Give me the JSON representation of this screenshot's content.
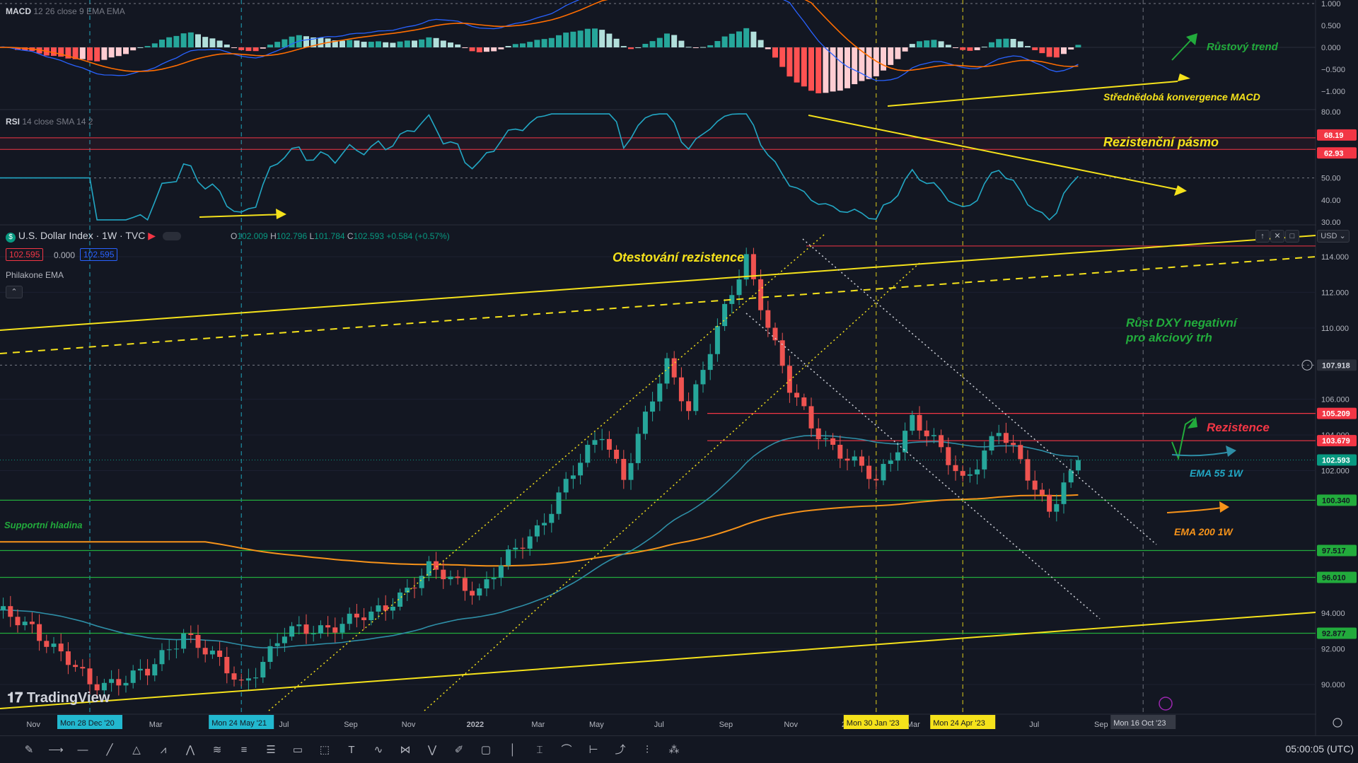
{
  "header": {
    "macd_label": "MACD",
    "macd_params": "12 26 close 9 EMA EMA",
    "rsi_label": "RSI",
    "rsi_params": "14 close SMA 14 2",
    "symbol": "U.S. Dollar Index · 1W · TVC",
    "open_label": "O",
    "open": "102.009",
    "high_label": "H",
    "high": "102.796",
    "low_label": "L",
    "low": "101.784",
    "close_label": "C",
    "close": "102.593",
    "change": "+0.584 (+0.57%)",
    "bid": "102.595",
    "spread": "0.000",
    "ask": "102.595",
    "indicator_name": "Philakone EMA",
    "currency": "USD",
    "up_color": "#26a69a",
    "down_color": "#ef5350"
  },
  "price_axis": [
    "114.000",
    "112.000",
    "110.000",
    "106.000",
    "104.000",
    "102.000",
    "94.000",
    "92.000",
    "90.000"
  ],
  "price_tags": [
    {
      "label": "107.918",
      "color": "#2a2e39",
      "text": "#d1d4dc"
    },
    {
      "label": "105.209",
      "color": "#f23645",
      "text": "#ffffff"
    },
    {
      "label": "103.679",
      "color": "#f23645",
      "text": "#ffffff"
    },
    {
      "label": "102.593",
      "color": "#089981",
      "text": "#ffffff"
    },
    {
      "label": "100.340",
      "color": "#22ab3c",
      "text": "#131722"
    },
    {
      "label": "97.517",
      "color": "#22ab3c",
      "text": "#131722"
    },
    {
      "label": "96.010",
      "color": "#22ab3c",
      "text": "#131722"
    },
    {
      "label": "92.877",
      "color": "#22ab3c",
      "text": "#131722"
    }
  ],
  "macd_axis": [
    "1.000",
    "0.500",
    "0.000",
    "−0.500",
    "−1.000"
  ],
  "rsi_axis": [
    "80.00",
    "50.00",
    "40.00",
    "30.00"
  ],
  "rsi_tags": [
    {
      "label": "68.19"
    },
    {
      "label": "62.93"
    }
  ],
  "time_axis": [
    "Nov",
    "Mar",
    "Jul",
    "Sep",
    "Nov",
    "2022",
    "Mar",
    "May",
    "Jul",
    "Sep",
    "Nov",
    "20",
    "Mar",
    "Jul",
    "Sep"
  ],
  "time_tags": [
    {
      "label": "Mon 28 Dec '20",
      "color": "#22b8cf"
    },
    {
      "label": "Mon 24 May '21",
      "color": "#22b8cf"
    },
    {
      "label": "Mon 30 Jan '23",
      "color": "#f5e21b"
    },
    {
      "label": "Mon 24 Apr '23",
      "color": "#f5e21b"
    },
    {
      "label": "Mon 16 Oct '23",
      "color": "#363a45"
    }
  ],
  "annotations": {
    "rustovy_trend": "Růstový trend",
    "macd_konvergence": "Střednědobá konvergence MACD",
    "rezistencni_pasmo": "Rezistenční pásmo",
    "otestovani": "Otestování rezistence",
    "rust_dxy_1": "Růst DXY negativní",
    "rust_dxy_2": "pro akciový trh",
    "rezistence": "Rezistence",
    "ema55": "EMA 55 1W",
    "ema200": "EMA 200 1W",
    "supportni": "Supportní hladina"
  },
  "branding": {
    "logo": "TradingView"
  },
  "clock": "05:00:05 (UTC)",
  "chart_data": {
    "type": "candlestick",
    "title": "U.S. Dollar Index · 1W · TVC",
    "ylabel": "USD",
    "ylim": [
      88.8,
      115.6
    ],
    "price_levels": [
      105.209,
      103.679,
      100.34,
      97.517,
      96.01,
      92.877
    ],
    "waypoints": [
      {
        "date": "2020-09-28",
        "price": 94.0
      },
      {
        "date": "2020-11-02",
        "price": 93.3
      },
      {
        "date": "2020-12-28",
        "price": 90.0
      },
      {
        "date": "2021-02-22",
        "price": 90.6
      },
      {
        "date": "2021-03-29",
        "price": 93.0
      },
      {
        "date": "2021-05-24",
        "price": 90.0
      },
      {
        "date": "2021-07-05",
        "price": 92.8
      },
      {
        "date": "2021-09-27",
        "price": 93.8
      },
      {
        "date": "2021-11-22",
        "price": 96.4
      },
      {
        "date": "2022-01-10",
        "price": 95.3
      },
      {
        "date": "2022-03-07",
        "price": 98.8
      },
      {
        "date": "2022-05-09",
        "price": 104.2
      },
      {
        "date": "2022-05-30",
        "price": 101.7
      },
      {
        "date": "2022-07-11",
        "price": 108.0
      },
      {
        "date": "2022-08-01",
        "price": 105.6
      },
      {
        "date": "2022-09-26",
        "price": 114.0
      },
      {
        "date": "2022-11-07",
        "price": 106.5
      },
      {
        "date": "2022-11-28",
        "price": 104.5
      },
      {
        "date": "2023-01-30",
        "price": 101.3
      },
      {
        "date": "2023-03-06",
        "price": 105.0
      },
      {
        "date": "2023-04-24",
        "price": 101.5
      },
      {
        "date": "2023-05-29",
        "price": 104.2
      },
      {
        "date": "2023-07-17",
        "price": 99.9
      },
      {
        "date": "2023-08-14",
        "price": 102.6
      }
    ],
    "last": {
      "open": 102.009,
      "high": 102.796,
      "low": 101.784,
      "close": 102.593
    },
    "macd_ylim": [
      -1.2,
      1.0
    ],
    "rsi_levels": [
      68.19,
      62.93
    ],
    "rsi_ylim": [
      28,
      82
    ]
  }
}
